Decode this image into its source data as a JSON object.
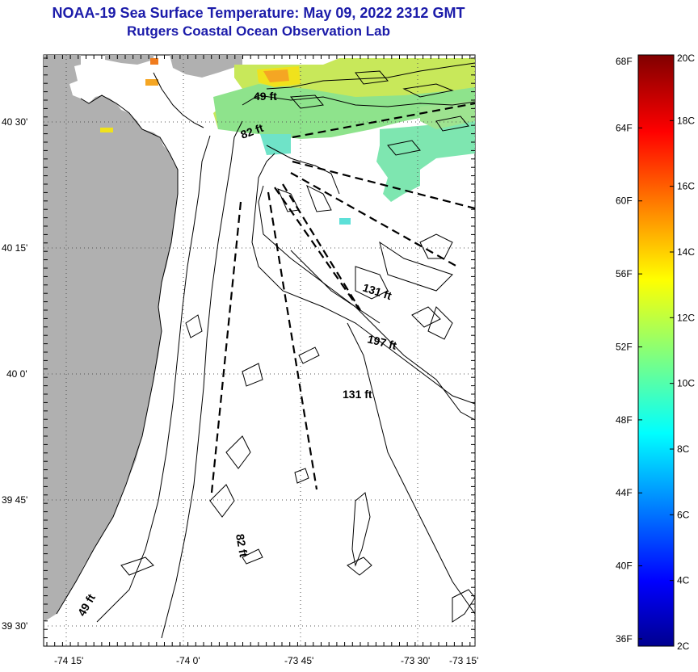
{
  "title": {
    "line1": "NOAA-19 Sea Surface Temperature:  May 09, 2022 2312 GMT",
    "line2": "Rutgers Coastal Ocean Observation Lab"
  },
  "map": {
    "lat_labels": [
      "40 30'",
      "40 15'",
      "40 0'",
      "39 45'",
      "39 30'"
    ],
    "lon_labels": [
      "-74 15'",
      "-74 0'",
      "-73 45'",
      "-73 30'",
      "-73 15'"
    ],
    "depth_labels": [
      "49 ft",
      "82 ft",
      "131 ft",
      "197 ft",
      "131 ft",
      "82 ft",
      "49 ft"
    ],
    "land_color": "#b0b0b0",
    "water_color": "#ffffff"
  },
  "colorbar": {
    "fahrenheit_labels": [
      "68F",
      "64F",
      "60F",
      "56F",
      "52F",
      "48F",
      "44F",
      "40F",
      "36F"
    ],
    "celsius_labels": [
      "20C",
      "18C",
      "16C",
      "14C",
      "12C",
      "10C",
      "8C",
      "6C",
      "4C",
      "2C"
    ],
    "range_c": [
      2,
      20
    ],
    "colormap": "jet"
  }
}
